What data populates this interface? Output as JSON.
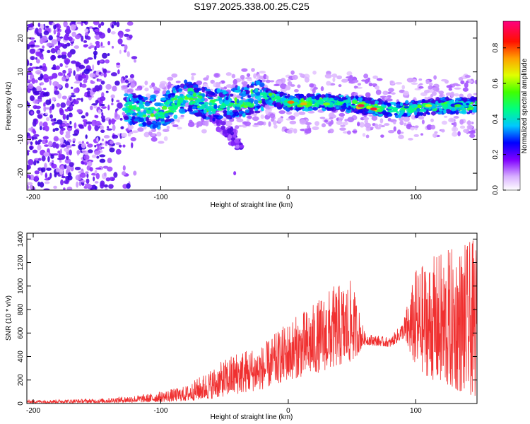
{
  "title": "S197.2025.338.00.25.C25",
  "chart_data": [
    {
      "type": "heatmap",
      "xlabel": "Height of straight line (km)",
      "ylabel": "Frequency (Hz)",
      "xlim": [
        -205,
        148
      ],
      "ylim": [
        -25,
        25
      ],
      "xticks": [
        -200,
        -100,
        0,
        100
      ],
      "yticks": [
        -20,
        -10,
        0,
        10,
        20
      ],
      "colorbar": {
        "label": "Normalized spectral amplitude",
        "range": [
          0,
          0.95
        ],
        "ticks": [
          0.0,
          0.2,
          0.4,
          0.6,
          0.8
        ],
        "colors": [
          "#ffffff",
          "#a000ff",
          "#4a00e0",
          "#0000ff",
          "#00c8ff",
          "#00ff80",
          "#80ff00",
          "#ffff00",
          "#ffa000",
          "#ff0000",
          "#ff0080"
        ]
      },
      "ridge": [
        {
          "x": -125,
          "y": -1
        },
        {
          "x": -100,
          "y": -2
        },
        {
          "x": -80,
          "y": 3
        },
        {
          "x": -60,
          "y": 0
        },
        {
          "x": -40,
          "y": 1
        },
        {
          "x": -20,
          "y": 3
        },
        {
          "x": 0,
          "y": 1
        },
        {
          "x": 20,
          "y": 1
        },
        {
          "x": 40,
          "y": 1
        },
        {
          "x": 60,
          "y": 0
        },
        {
          "x": 80,
          "y": -1
        },
        {
          "x": 100,
          "y": -1
        },
        {
          "x": 120,
          "y": 0
        },
        {
          "x": 148,
          "y": 0
        }
      ],
      "hotspots": [
        {
          "x": 57,
          "y": 0,
          "amp": 0.92
        },
        {
          "x": 67,
          "y": -1,
          "amp": 0.9
        },
        {
          "x": 2,
          "y": 1,
          "amp": 0.8
        },
        {
          "x": 12,
          "y": 0.5,
          "amp": 0.75
        },
        {
          "x": 30,
          "y": 0.5,
          "amp": 0.6
        },
        {
          "x": 110,
          "y": 0,
          "amp": 0.65
        },
        {
          "x": 133,
          "y": 0,
          "amp": 0.55
        }
      ]
    },
    {
      "type": "line",
      "xlabel": "Height of straight line (km)",
      "ylabel": "SNR (10 * v/v)",
      "xlim": [
        -205,
        148
      ],
      "ylim": [
        0,
        1450
      ],
      "xticks": [
        -200,
        -100,
        0,
        100
      ],
      "yticks": [
        0,
        200,
        400,
        600,
        800,
        1000,
        1200,
        1400
      ],
      "color": "#f03030",
      "envelope": [
        {
          "x": -205,
          "low": 5,
          "high": 30
        },
        {
          "x": -150,
          "low": 5,
          "high": 40
        },
        {
          "x": -110,
          "low": 10,
          "high": 80
        },
        {
          "x": -80,
          "low": 20,
          "high": 150
        },
        {
          "x": -60,
          "low": 40,
          "high": 300
        },
        {
          "x": -40,
          "low": 80,
          "high": 450
        },
        {
          "x": -20,
          "low": 120,
          "high": 500
        },
        {
          "x": 0,
          "low": 200,
          "high": 700
        },
        {
          "x": 20,
          "low": 250,
          "high": 850
        },
        {
          "x": 35,
          "low": 300,
          "high": 1000
        },
        {
          "x": 50,
          "low": 350,
          "high": 1050
        },
        {
          "x": 60,
          "low": 500,
          "high": 600
        },
        {
          "x": 80,
          "low": 480,
          "high": 560
        },
        {
          "x": 90,
          "low": 550,
          "high": 700
        },
        {
          "x": 100,
          "low": 300,
          "high": 1150
        },
        {
          "x": 120,
          "low": 150,
          "high": 1300
        },
        {
          "x": 148,
          "low": 50,
          "high": 1400
        }
      ]
    }
  ]
}
